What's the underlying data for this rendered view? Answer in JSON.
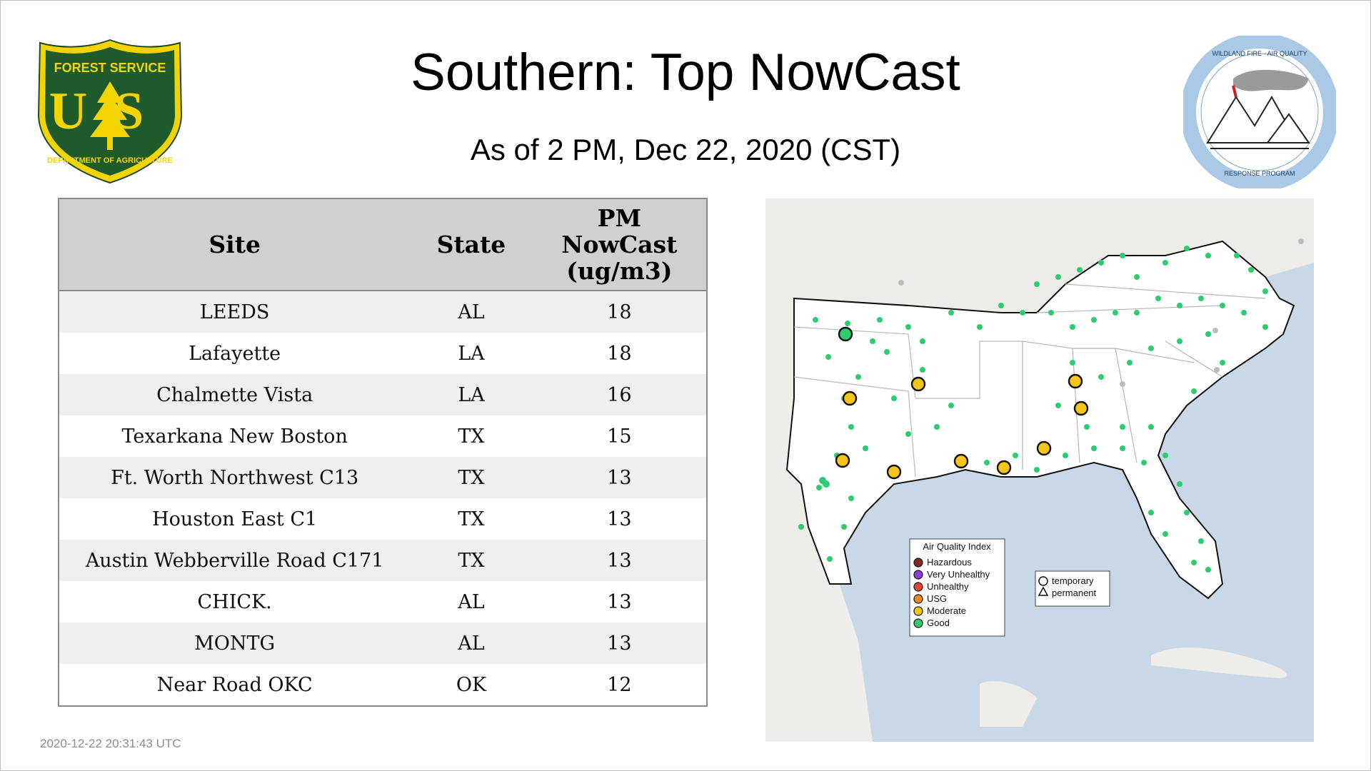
{
  "header": {
    "title": "Southern: Top NowCast",
    "subtitle": "As of  2 PM, Dec 22, 2020 (CST)"
  },
  "logos": {
    "left": {
      "name": "forest-service-shield",
      "text_top": "FOREST SERVICE",
      "text_mid": "US",
      "text_bottom": "DEPARTMENT OF AGRICULTURE"
    },
    "right": {
      "name": "wildland-fire-air-quality-seal",
      "text_top": "WILDLAND FIRE · AIR QUALITY",
      "text_bottom": "RESPONSE PROGRAM"
    }
  },
  "table": {
    "headers": {
      "site": "Site",
      "state": "State",
      "pm_line1": "PM",
      "pm_line2": "NowCast",
      "pm_line3": "(ug/m3)"
    },
    "rows": [
      {
        "site": "LEEDS",
        "state": "AL",
        "value": "18"
      },
      {
        "site": "Lafayette",
        "state": "LA",
        "value": "18"
      },
      {
        "site": "Chalmette Vista",
        "state": "LA",
        "value": "16"
      },
      {
        "site": "Texarkana New Boston",
        "state": "TX",
        "value": "15"
      },
      {
        "site": "Ft. Worth Northwest C13",
        "state": "TX",
        "value": "13"
      },
      {
        "site": "Houston East C1",
        "state": "TX",
        "value": "13"
      },
      {
        "site": "Austin Webberville Road C171",
        "state": "TX",
        "value": "13"
      },
      {
        "site": "CHICK.",
        "state": "AL",
        "value": "13"
      },
      {
        "site": "MONTG",
        "state": "AL",
        "value": "13"
      },
      {
        "site": "Near Road OKC",
        "state": "OK",
        "value": "12"
      }
    ]
  },
  "map": {
    "legend_aqi": {
      "title": "Air Quality Index",
      "items": [
        {
          "label": "Hazardous",
          "color": "#7e2a2a"
        },
        {
          "label": "Very Unhealthy",
          "color": "#8f3fd0"
        },
        {
          "label": "Unhealthy",
          "color": "#e8463a"
        },
        {
          "label": "USG",
          "color": "#f08a1e"
        },
        {
          "label": "Moderate",
          "color": "#f5c518"
        },
        {
          "label": "Good",
          "color": "#2ecc71"
        }
      ]
    },
    "legend_type": {
      "items": [
        {
          "label": "temporary",
          "symbol": "circle-icon"
        },
        {
          "label": "permanent",
          "symbol": "triangle-icon"
        }
      ]
    },
    "colors": {
      "water": "#c9d8e6",
      "land": "#f0eeeb",
      "region": "#ffffff",
      "good": "#2ecc71",
      "moderate": "#f5c518",
      "nodata": "#bdbdbd"
    }
  },
  "timestamp": "2020-12-22 20:31:43 UTC"
}
